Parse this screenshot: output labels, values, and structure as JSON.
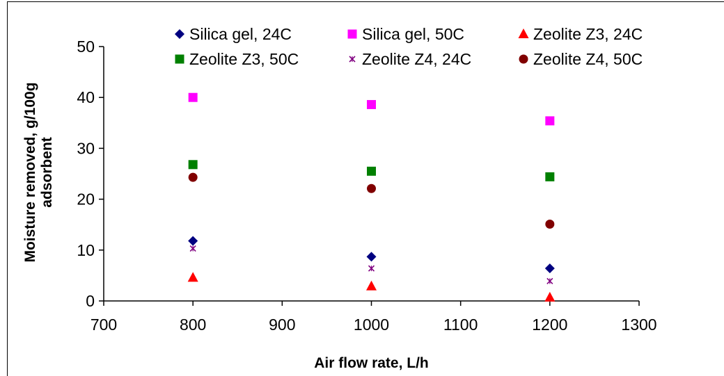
{
  "chart_data": {
    "type": "scatter",
    "title": "",
    "xlabel": "Air flow rate, L/h",
    "ylabel_lines": [
      "Moisture removed, g/100g",
      "adsorbent"
    ],
    "xlim": [
      700,
      1300
    ],
    "ylim": [
      0,
      50
    ],
    "xticks": [
      "700",
      "800",
      "900",
      "1000",
      "1100",
      "1200",
      "1300"
    ],
    "yticks": [
      "0",
      "10",
      "20",
      "30",
      "40",
      "50"
    ],
    "grid": false,
    "legend_position": "top",
    "series": [
      {
        "name": "Silica gel, 24C",
        "marker": "diamond",
        "color": "#000080",
        "x": [
          800,
          1000,
          1200
        ],
        "y": [
          11.8,
          8.7,
          6.4
        ]
      },
      {
        "name": "Silica gel, 50C",
        "marker": "square",
        "color": "#FF00FF",
        "x": [
          800,
          1000,
          1200
        ],
        "y": [
          40.0,
          38.6,
          35.4
        ]
      },
      {
        "name": "Zeolite Z3, 24C",
        "marker": "triangle",
        "color": "#FF0000",
        "x": [
          800,
          1000,
          1200
        ],
        "y": [
          4.6,
          2.9,
          0.7
        ]
      },
      {
        "name": "Zeolite Z3, 50C",
        "marker": "square-green",
        "color": "#008000",
        "x": [
          800,
          1000,
          1200
        ],
        "y": [
          26.8,
          25.5,
          24.4
        ]
      },
      {
        "name": "Zeolite Z4, 24C",
        "marker": "star",
        "color": "#800080",
        "x": [
          800,
          1000,
          1200
        ],
        "y": [
          10.3,
          6.4,
          3.9
        ]
      },
      {
        "name": "Zeolite Z4, 50C",
        "marker": "circle",
        "color": "#800000",
        "x": [
          800,
          1000,
          1200
        ],
        "y": [
          24.3,
          22.1,
          15.1
        ]
      }
    ]
  }
}
